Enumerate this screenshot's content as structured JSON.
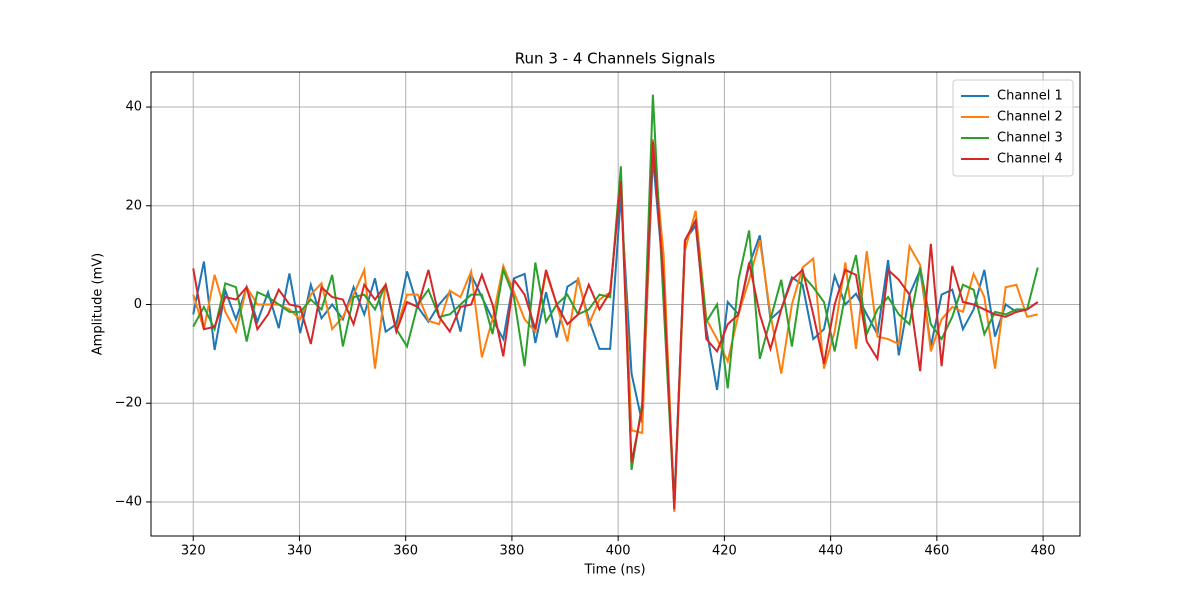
{
  "chart_data": {
    "type": "line",
    "title": "Run 3 - 4 Channels Signals",
    "xlabel": "Time (ns)",
    "ylabel": "Amplitude (mV)",
    "x": [
      320,
      322.01,
      324.03,
      326.04,
      328.05,
      330.06,
      332.08,
      334.09,
      336.1,
      338.11,
      340.13,
      342.14,
      344.15,
      346.16,
      348.18,
      350.19,
      352.2,
      354.22,
      356.23,
      358.24,
      360.25,
      362.27,
      364.28,
      366.29,
      368.3,
      370.32,
      372.33,
      374.34,
      376.35,
      378.37,
      380.38,
      382.39,
      384.41,
      386.42,
      388.43,
      390.44,
      392.46,
      394.47,
      396.48,
      398.49,
      400.51,
      402.52,
      404.53,
      406.54,
      408.56,
      410.57,
      412.58,
      414.59,
      416.61,
      418.62,
      420.63,
      422.65,
      424.66,
      426.67,
      428.68,
      430.7,
      432.71,
      434.72,
      436.73,
      438.75,
      440.76,
      442.77,
      444.78,
      446.8,
      448.81,
      450.82,
      452.84,
      454.85,
      456.86,
      458.87,
      460.89,
      462.9,
      464.91,
      466.92,
      468.94,
      470.95,
      472.96,
      474.97,
      476.99,
      479
    ],
    "series": [
      {
        "name": "Channel 1",
        "color": "#1f77b4",
        "values": [
          -2,
          8.7,
          -9.2,
          2.8,
          -3,
          3.5,
          -3.5,
          2.5,
          -4.8,
          6.3,
          -5.8,
          4,
          -2.8,
          0,
          -3,
          3.5,
          -2,
          5.3,
          -5.5,
          -4,
          6.7,
          -0.5,
          -3.5,
          0,
          2.5,
          -5.5,
          6,
          1.5,
          -3,
          -7,
          5.3,
          6.2,
          -7.8,
          2.5,
          -6.7,
          3.6,
          5,
          -3,
          -9,
          -9,
          22,
          -14,
          -24,
          30,
          5,
          -40,
          13,
          16,
          -5,
          -17.3,
          0.5,
          -2,
          8,
          14,
          -3,
          -1,
          5.5,
          4,
          -7,
          -5,
          5.8,
          0,
          2.2,
          -2,
          -6,
          9,
          -10.3,
          2,
          7,
          -8.5,
          2,
          3,
          -5,
          -1,
          7,
          -6.5,
          0,
          -1.5,
          -1,
          0.5
        ]
      },
      {
        "name": "Channel 2",
        "color": "#ff7f0e",
        "values": [
          2,
          -5,
          6,
          -1.5,
          -5.5,
          3.5,
          0,
          0,
          0,
          -1,
          -3,
          2,
          4.3,
          -5,
          -2.5,
          2,
          7,
          -13,
          4,
          -5,
          2,
          2,
          -3.3,
          -4,
          2.8,
          1.5,
          6.7,
          -10.7,
          -3,
          7.8,
          2.5,
          -3,
          -5.5,
          6.5,
          0,
          -7.5,
          5.5,
          -4,
          1,
          2.5,
          25,
          -25.5,
          -26,
          33.5,
          10,
          -42,
          11,
          19,
          -3,
          -7,
          -11.5,
          -2,
          5,
          13,
          -2,
          -14,
          0,
          7.5,
          9.3,
          -13,
          -5.5,
          8.5,
          -9,
          10.8,
          -6.5,
          -7,
          -8,
          11.8,
          8,
          -9.5,
          -3,
          -0.5,
          -1.5,
          6.2,
          1.5,
          -13,
          3.5,
          4,
          -2.5,
          -2
        ]
      },
      {
        "name": "Channel 3",
        "color": "#2ca02c",
        "values": [
          -4.5,
          -0.5,
          -5,
          4.3,
          3.5,
          -7.5,
          2.5,
          1.5,
          0,
          -1.5,
          -1.5,
          1,
          -1,
          6,
          -8.5,
          1.5,
          2,
          -1,
          4,
          -5,
          -8.5,
          0,
          3,
          -2.5,
          -2,
          0,
          2,
          2,
          -6,
          7,
          1.5,
          -12.5,
          8.5,
          -3.5,
          0,
          2,
          -2,
          -1,
          2,
          1.5,
          28,
          -33.5,
          -20,
          42.5,
          0,
          -41,
          13,
          17,
          -3.5,
          0,
          -17,
          5,
          15,
          -11,
          -3,
          5,
          -8.5,
          6,
          3.5,
          0.5,
          -9.5,
          2,
          10,
          -6,
          -1,
          1.5,
          -2,
          -4,
          7.5,
          -4,
          -7,
          -2.5,
          4,
          3,
          -6,
          -1.5,
          -2,
          -1,
          -1,
          7.5
        ]
      },
      {
        "name": "Channel 4",
        "color": "#d62728",
        "values": [
          7.3,
          -5,
          -4.5,
          1.5,
          1,
          3.5,
          -5,
          -2,
          3,
          0,
          -0.5,
          -8,
          3.5,
          1.5,
          1,
          -4,
          4,
          1,
          4,
          -5.5,
          0.5,
          -0.5,
          7,
          -2.5,
          -5.5,
          -0.5,
          0,
          6,
          0,
          -10.5,
          5,
          2,
          -5,
          7,
          0,
          -4,
          -2,
          4,
          -1,
          2.5,
          25,
          -32,
          -21,
          33,
          5,
          -41.5,
          13,
          17,
          -7,
          -9.5,
          -4,
          -2,
          8.5,
          -2,
          -9,
          -1,
          5,
          7,
          -2,
          -12,
          0,
          7,
          6,
          -7.5,
          -11,
          7,
          5,
          2,
          -13.5,
          12.3,
          -12.5,
          7.8,
          0.5,
          0,
          -1,
          -2,
          -2.5,
          -1.5,
          -1,
          0.5
        ]
      }
    ],
    "xlim": [
      312.05,
      486.95
    ],
    "xticks": [
      320,
      340,
      360,
      380,
      400,
      420,
      440,
      460,
      480
    ],
    "ylim": [
      -46.9,
      47.1
    ],
    "yticks": [
      {
        "value": -40,
        "label": "−40"
      },
      {
        "value": -20,
        "label": "−20"
      },
      0,
      20,
      40
    ],
    "grid": true,
    "legend": "upper right"
  }
}
